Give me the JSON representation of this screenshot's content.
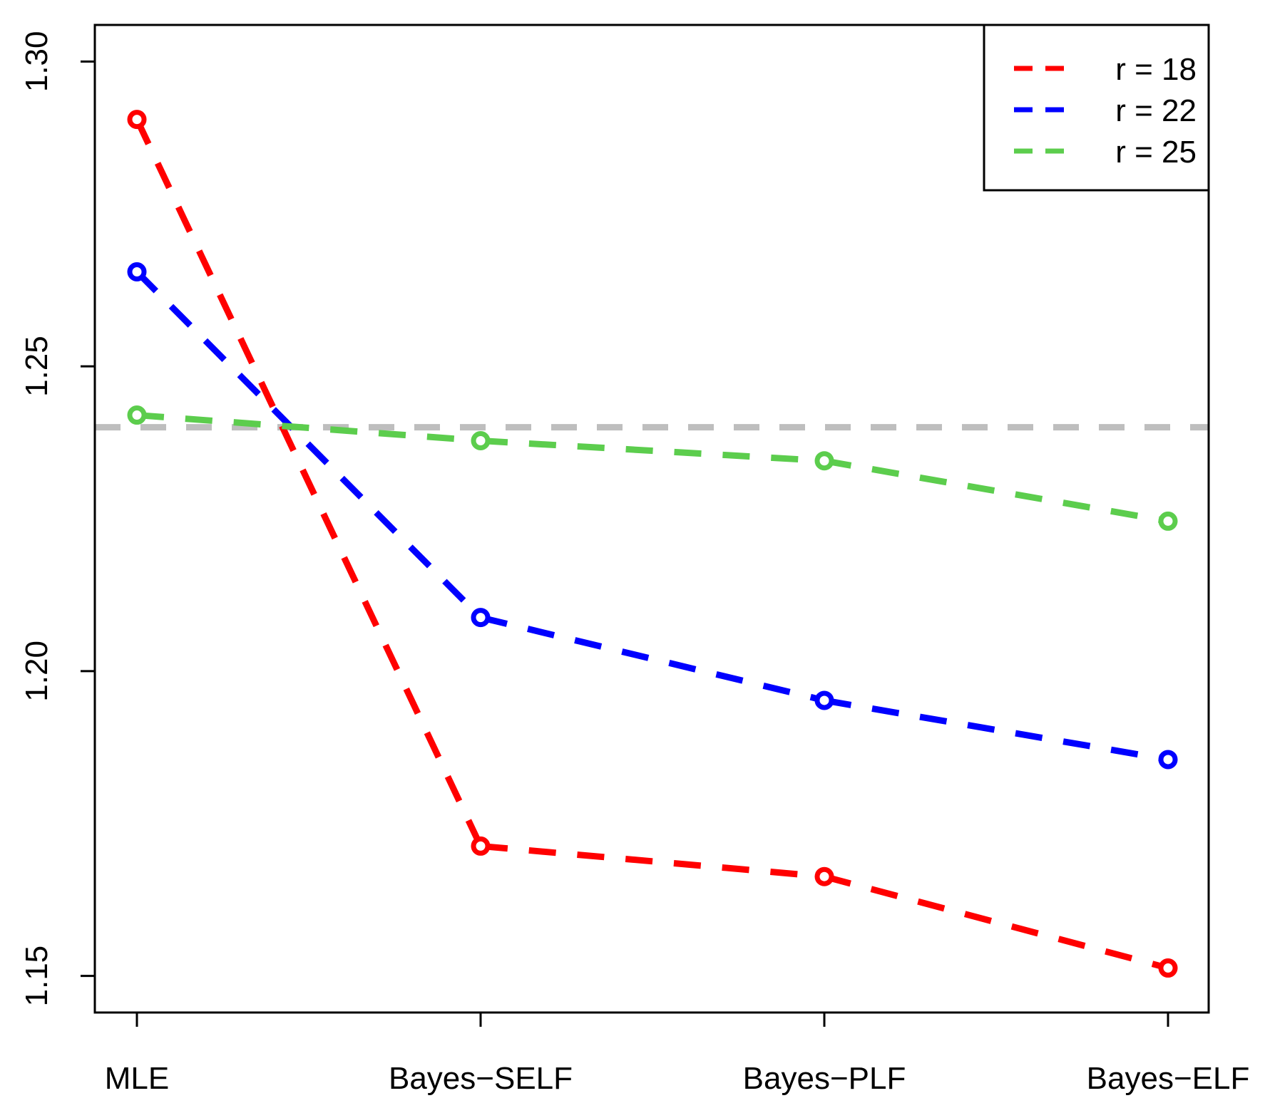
{
  "chart_data": {
    "type": "line",
    "title": "",
    "xlabel": "",
    "ylabel": "",
    "categories": [
      "MLE",
      "Bayes−SELF",
      "Bayes−PLF",
      "Bayes−ELF"
    ],
    "ylim": [
      1.144,
      1.306
    ],
    "yticks": [
      1.15,
      1.2,
      1.25,
      1.3
    ],
    "ytick_labels": [
      "1.15",
      "1.20",
      "1.25",
      "1.30"
    ],
    "reference_line": {
      "y": 1.24,
      "color": "#bebebe",
      "style": "dashed"
    },
    "series": [
      {
        "name": "r = 18",
        "color": "#ff0000",
        "values": [
          1.2905,
          1.1713,
          1.1663,
          1.1513
        ]
      },
      {
        "name": "r = 22",
        "color": "#0000ff",
        "values": [
          1.2655,
          1.2088,
          1.1952,
          1.1855
        ]
      },
      {
        "name": "r = 25",
        "color": "#5ccd4d",
        "values": [
          1.242,
          1.2378,
          1.2345,
          1.2246
        ]
      }
    ],
    "legend": {
      "position": "top-right",
      "entries": [
        "r = 18",
        "r = 22",
        "r = 25"
      ]
    },
    "grid": false,
    "line_style": "dashed",
    "marker": "open-circle"
  }
}
